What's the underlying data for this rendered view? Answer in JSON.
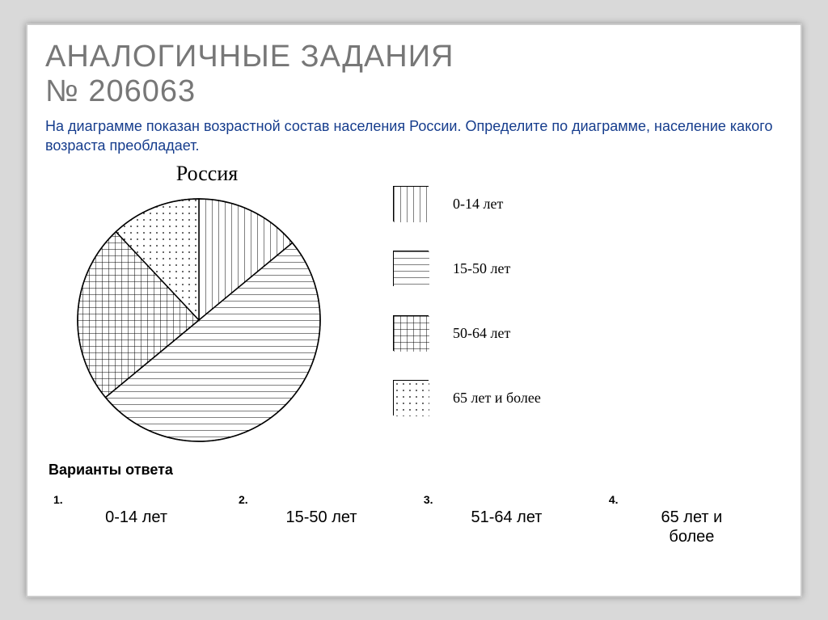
{
  "title_line1": "АНАЛОГИЧНЫЕ   ЗАДАНИЯ",
  "title_line2": "№ 206063",
  "question": "На диаграмме показан возрастной состав населения России. Определите по диаграмме, население какого возраста преобладает.",
  "pie": {
    "type": "pie",
    "title": "Россия",
    "radius": 150,
    "stroke": "#000000",
    "background": "#ffffff",
    "slices": [
      {
        "label": "0-14 лет",
        "value": 14,
        "pattern": "vertical"
      },
      {
        "label": "15-50 лет",
        "value": 50,
        "pattern": "horizontal"
      },
      {
        "label": "50-64 лет",
        "value": 24,
        "pattern": "grid"
      },
      {
        "label": "65 лет и более",
        "value": 12,
        "pattern": "dots"
      }
    ],
    "start_angle_deg": -90
  },
  "legend_items": [
    {
      "pattern": "vertical",
      "label": "0-14 лет"
    },
    {
      "pattern": "horizontal",
      "label": "15-50 лет"
    },
    {
      "pattern": "grid",
      "label": "50-64 лет"
    },
    {
      "pattern": "dots",
      "label": "65 лет и более"
    }
  ],
  "answers_title": "Варианты ответа",
  "answers": [
    {
      "num": "1.",
      "text": "0-14 лет"
    },
    {
      "num": "2.",
      "text": "15-50 лет"
    },
    {
      "num": "3.",
      "text": "51-64 лет"
    },
    {
      "num": "4.",
      "text": "65 лет и\nболее"
    }
  ],
  "colors": {
    "page_bg": "#d9d9d9",
    "frame_bg": "#ffffff",
    "title_color": "#777777",
    "question_color": "#163d8d",
    "stroke": "#000000"
  }
}
